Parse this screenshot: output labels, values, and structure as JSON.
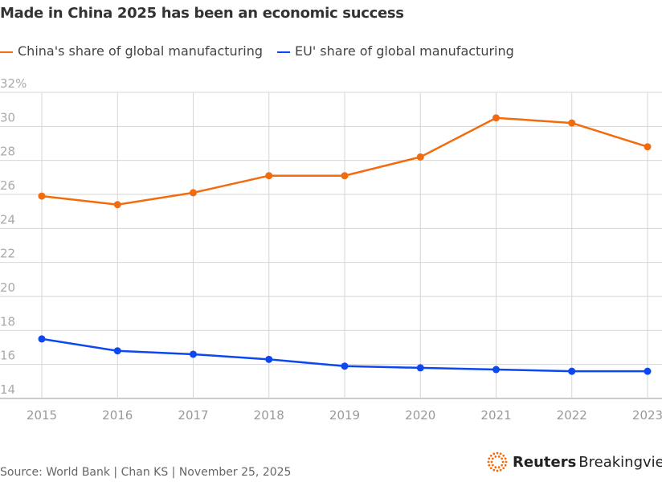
{
  "chart_data": {
    "type": "line",
    "title": "Made in China 2025 has been an economic success",
    "x": [
      2015,
      2016,
      2017,
      2018,
      2019,
      2020,
      2021,
      2022,
      2023
    ],
    "series": [
      {
        "name": "China's share of global manufacturing",
        "color": "#f26b0f",
        "values": [
          25.9,
          25.4,
          26.1,
          27.1,
          27.1,
          28.2,
          30.5,
          30.2,
          28.8
        ]
      },
      {
        "name": "EU' share of global manufacturing",
        "color": "#0d47ef",
        "values": [
          17.5,
          16.8,
          16.6,
          16.3,
          15.9,
          15.8,
          15.7,
          15.6,
          15.6
        ]
      }
    ],
    "ylim": [
      14,
      32
    ],
    "yticks": [
      "14",
      "16",
      "18",
      "20",
      "22",
      "24",
      "26",
      "28",
      "30",
      "32%"
    ],
    "grid": true,
    "legend": "top-left"
  },
  "footer": {
    "source": "Source: World Bank | Chan KS | November 25, 2025",
    "brand_bold": "Reuters",
    "brand_light": "Breakingviews"
  }
}
